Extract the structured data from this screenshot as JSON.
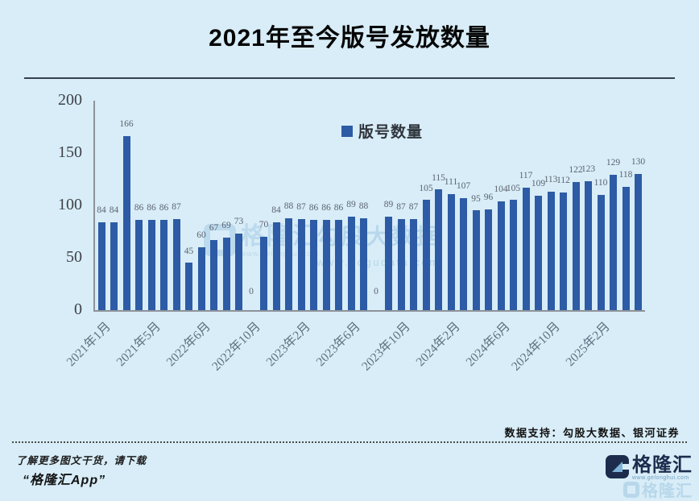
{
  "header": {
    "title": "2021年至今版号发放数量"
  },
  "chart_data": {
    "type": "bar",
    "title": "2021年至今版号发放数量",
    "legend": "版号数量",
    "bar_color": "#2d5ba5",
    "ylim": [
      0,
      200
    ],
    "y_ticks": [
      0,
      50,
      100,
      150,
      200
    ],
    "grid": "off",
    "legend_position": "top-center",
    "x_tick_labels": [
      "2021年1月",
      "2021年5月",
      "2022年6月",
      "2022年10月",
      "2023年2月",
      "2023年6月",
      "2023年10月",
      "2024年2月",
      "2024年6月",
      "2024年10月",
      "2025年2月"
    ],
    "x_tick_every": 4,
    "values": [
      84,
      84,
      166,
      86,
      86,
      86,
      87,
      45,
      60,
      67,
      69,
      73,
      0,
      70,
      84,
      88,
      87,
      86,
      86,
      86,
      89,
      88,
      0,
      89,
      87,
      87,
      105,
      115,
      111,
      107,
      95,
      96,
      104,
      105,
      117,
      109,
      113,
      112,
      122,
      123,
      110,
      129,
      118,
      130
    ]
  },
  "watermarks": {
    "gelonghui": {
      "name": "格隆汇",
      "url": "www.gelonghui.com"
    },
    "gogu": {
      "name": "勾股大数据",
      "url": "www.gogudata.com"
    }
  },
  "footer": {
    "credit": "数据支持：勾股大数据、银河证券",
    "promo_line1": "了解更多图文干货，请下载",
    "promo_line2": "“格隆汇App”",
    "logo_name": "格隆汇",
    "logo_url": "www.gelonghui.com",
    "logo_shadow_name": "格隆汇"
  }
}
